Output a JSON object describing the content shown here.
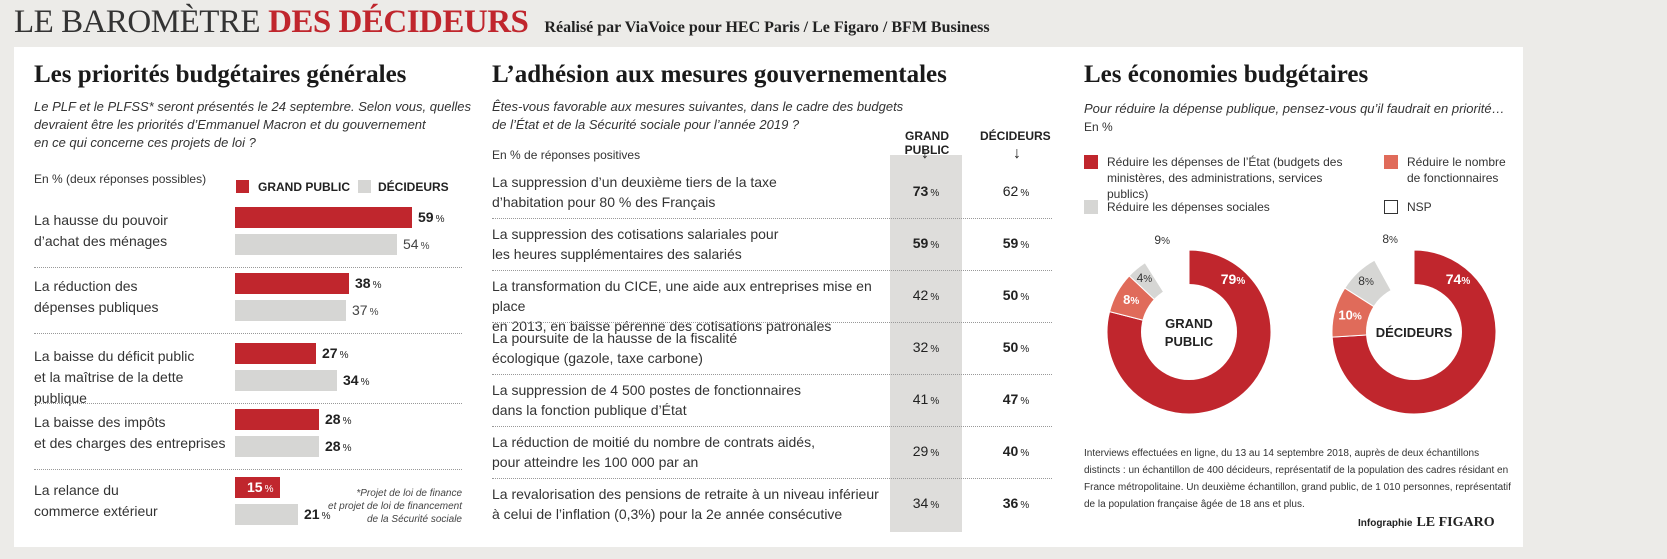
{
  "header": {
    "title_main": "LE BAROMÈTRE",
    "title_accent": "DES DÉCIDEURS",
    "subtitle": "Réalisé par ViaVoice pour HEC Paris / Le Figaro / BFM Business"
  },
  "colors": {
    "red": "#c0262d",
    "grey": "#d6d6d4",
    "salmon": "#e06b5a",
    "white": "#ffffff"
  },
  "left": {
    "title": "Les priorités budgétaires générales",
    "question": [
      "Le PLF et le PLFSS* seront présentés le 24 septembre. Selon vous, quelles",
      "devraient être les priorités d’Emmanuel Macron et du gouvernement",
      "en ce qui concerne ces projets de loi ?"
    ],
    "note": "En % (deux réponses possibles)",
    "legend_gp": "GRAND PUBLIC",
    "legend_dec": "DÉCIDEURS",
    "pct_sign": "%",
    "footnote": [
      "*Projet de loi de finance",
      "et projet de loi de financement",
      "de la Sécurité sociale"
    ]
  },
  "middle": {
    "title": "L’adhésion aux mesures gouvernementales",
    "question": [
      "Êtes-vous favorable aux mesures suivantes, dans le cadre des budgets",
      "de l’État et de la Sécurité sociale pour l’année 2019 ?"
    ],
    "note": "En % de réponses positives",
    "col_gp": "GRAND PUBLIC",
    "col_dec": "DÉCIDEURS",
    "arrow": "↓",
    "pct_sign": "%",
    "rows": [
      {
        "label": [
          "La suppression d’un deuxième tiers de la taxe",
          "d’habitation pour 80 % des Français"
        ],
        "gp": 73,
        "dec": 62,
        "bold": "gp"
      },
      {
        "label": [
          "La suppression des cotisations salariales pour",
          "les heures supplémentaires des salariés"
        ],
        "gp": 59,
        "dec": 59,
        "bold": "both"
      },
      {
        "label": [
          "La transformation du CICE, une aide aux entreprises mise en place",
          "en 2013, en baisse pérenne des cotisations patronales"
        ],
        "gp": 42,
        "dec": 50,
        "bold": "dec"
      },
      {
        "label": [
          "La poursuite de la hausse de la fiscalité",
          "écologique (gazole, taxe carbone)"
        ],
        "gp": 32,
        "dec": 50,
        "bold": "dec"
      },
      {
        "label": [
          "La suppression de 4 500 postes de fonctionnaires",
          "dans la fonction publique d’État"
        ],
        "gp": 41,
        "dec": 47,
        "bold": "dec"
      },
      {
        "label": [
          "La réduction de moitié du nombre de contrats aidés,",
          "pour atteindre les 100 000 par an"
        ],
        "gp": 29,
        "dec": 40,
        "bold": "dec"
      },
      {
        "label": [
          "La revalorisation des pensions de retraite à un niveau inférieur",
          "à celui de l’inflation (0,3%) pour la 2e année consécutive"
        ],
        "gp": 34,
        "dec": 36,
        "bold": "dec"
      }
    ]
  },
  "right": {
    "title": "Les économies budgétaires",
    "question": "Pour réduire la dépense publique, pensez-vous qu’il faudrait en priorité…",
    "note": "En %",
    "legend": [
      {
        "label": [
          "Réduire les dépenses de l’État (budgets des",
          "ministères, des administrations, services publics)"
        ],
        "color": "#c0262d"
      },
      {
        "label": [
          "Réduire le nombre",
          "de fonctionnaires"
        ],
        "color": "#e06b5a"
      },
      {
        "label": [
          "Réduire les dépenses sociales"
        ],
        "color": "#d6d6d4"
      },
      {
        "label": [
          "NSP"
        ],
        "color": "#ffffff"
      }
    ],
    "donut_gp_label": [
      "GRAND",
      "PUBLIC"
    ],
    "donut_dec_label": [
      "DÉCIDEURS"
    ],
    "methodology": [
      "Interviews effectuées en ligne, du 13 au 14 septembre 2018, auprès de deux échantillons",
      "distincts : un échantillon de 400 décideurs, représentatif de la population des cadres résidant en",
      "France métropolitaine. Un deuxième échantillon, grand public, de 1 010 personnes, représentatif",
      "de la population française âgée de 18 ans et plus."
    ],
    "credit_prefix": "Infographie",
    "credit_brand": "LE FIGARO"
  },
  "chart_data": [
    {
      "type": "bar",
      "title": "Les priorités budgétaires générales",
      "categories": [
        "La hausse du pouvoir d’achat des ménages",
        "La réduction des dépenses publiques",
        "La baisse du déficit public et la maîtrise de la dette publique",
        "La baisse des impôts et des charges des entreprises",
        "La relance du commerce extérieur"
      ],
      "category_lines": [
        [
          "La hausse du pouvoir",
          "d’achat des ménages"
        ],
        [
          "La réduction des",
          "dépenses publiques"
        ],
        [
          "La baisse du déficit public",
          "et la maîtrise de la dette publique"
        ],
        [
          "La baisse des impôts",
          "et des charges des entreprises"
        ],
        [
          "La relance du",
          "commerce extérieur"
        ]
      ],
      "series": [
        {
          "name": "GRAND PUBLIC",
          "values": [
            59,
            38,
            27,
            28,
            15
          ]
        },
        {
          "name": "DÉCIDEURS",
          "values": [
            54,
            37,
            34,
            28,
            21
          ]
        }
      ],
      "unit": "%",
      "legend": "top"
    },
    {
      "type": "table",
      "title": "L’adhésion aux mesures gouvernementales",
      "columns": [
        "GRAND PUBLIC",
        "DÉCIDEURS"
      ],
      "values_gp": [
        73,
        59,
        42,
        32,
        41,
        29,
        34
      ],
      "values_dec": [
        62,
        59,
        50,
        50,
        47,
        40,
        36
      ],
      "unit": "%"
    },
    {
      "type": "pie",
      "name": "GRAND PUBLIC",
      "labels": [
        "Réduire les dépenses de l’État",
        "Réduire le nombre de fonctionnaires",
        "Réduire les dépenses sociales",
        "NSP"
      ],
      "values": [
        79,
        8,
        4,
        9
      ],
      "unit": "%"
    },
    {
      "type": "pie",
      "name": "DÉCIDEURS",
      "labels": [
        "Réduire les dépenses de l’État",
        "Réduire le nombre de fonctionnaires",
        "Réduire les dépenses sociales",
        "NSP"
      ],
      "values": [
        74,
        10,
        8,
        8
      ],
      "unit": "%"
    }
  ]
}
